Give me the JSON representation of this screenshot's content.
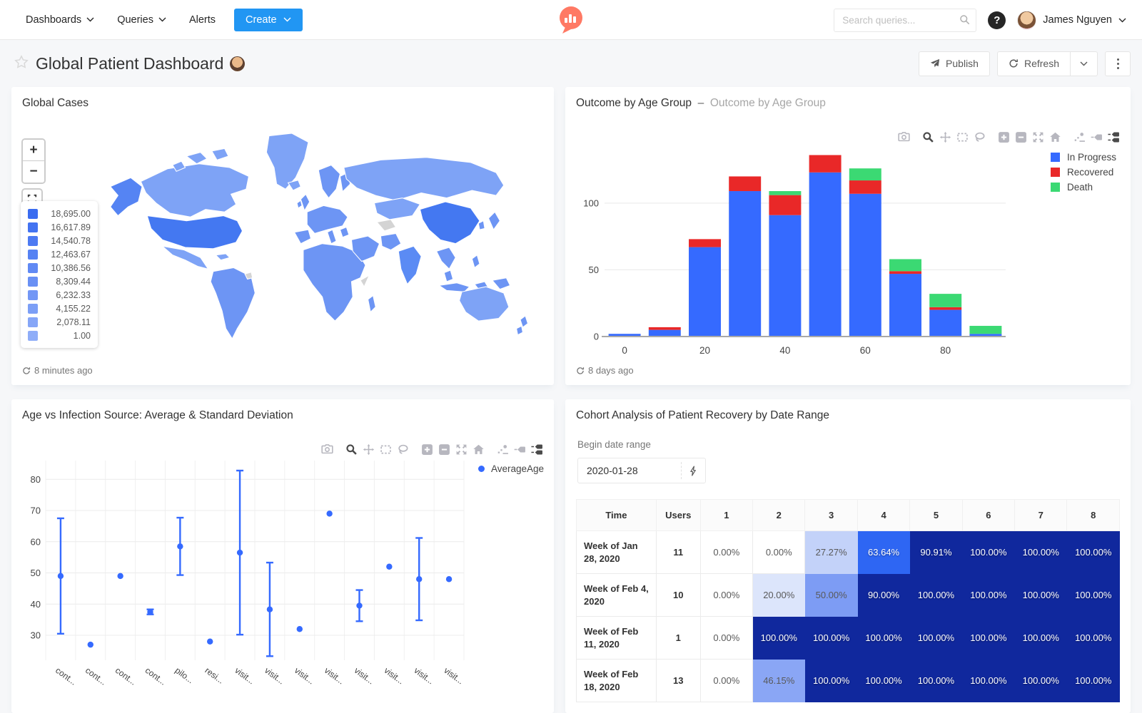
{
  "nav": {
    "menu": [
      {
        "label": "Dashboards"
      },
      {
        "label": "Queries"
      },
      {
        "label": "Alerts"
      }
    ],
    "create_label": "Create",
    "search_placeholder": "Search queries...",
    "user_name": "James Nguyen"
  },
  "header": {
    "title": "Global Patient Dashboard",
    "publish_label": "Publish",
    "refresh_label": "Refresh"
  },
  "panels": {
    "map": {
      "title": "Global Cases",
      "updated": "8 minutes ago",
      "zoom_in": "+",
      "zoom_out": "−",
      "legend_values": [
        "18,695.00",
        "16,617.89",
        "14,540.78",
        "12,463.67",
        "10,386.56",
        "8,309.44",
        "6,232.33",
        "4,155.22",
        "2,078.11",
        "1.00"
      ]
    },
    "bar": {
      "title": "Outcome by Age Group",
      "separator": "–",
      "subtitle": "Outcome by Age Group",
      "updated": "8 days ago"
    },
    "scatter": {
      "title": "Age vs Infection Source: Average & Standard Deviation",
      "legend": "AverageAge"
    },
    "cohort": {
      "title": "Cohort Analysis of Patient Recovery by Date Range",
      "param_label": "Begin date range",
      "param_value": "2020-01-28"
    }
  },
  "modebar": [
    "camera",
    "zoom",
    "pan",
    "box-select",
    "lasso",
    "zoom-in",
    "zoom-out",
    "autoscale",
    "reset-home",
    "spike-lines",
    "hover-closest",
    "hover-compare"
  ],
  "chart_data": [
    {
      "id": "outcome_by_age",
      "type": "bar",
      "stacked": true,
      "categories": [
        0,
        10,
        20,
        30,
        40,
        50,
        60,
        70,
        80,
        90
      ],
      "series": [
        {
          "name": "In Progress",
          "color": "#356AFF",
          "values": [
            2,
            5,
            67,
            109,
            91,
            123,
            107,
            47,
            20,
            2
          ]
        },
        {
          "name": "Recovered",
          "color": "#E92828",
          "values": [
            0,
            2,
            6,
            11,
            15,
            13,
            10,
            2,
            2,
            0
          ]
        },
        {
          "name": "Death",
          "color": "#3BD973",
          "values": [
            0,
            0,
            0,
            0,
            3,
            0,
            9,
            9,
            10,
            6
          ]
        }
      ],
      "xticks": [
        "0",
        "20",
        "40",
        "60",
        "80"
      ],
      "yticks": [
        0,
        50,
        100
      ],
      "ylim": [
        0,
        140
      ],
      "grid": true,
      "legend_position": "right"
    },
    {
      "id": "age_vs_infection_source",
      "type": "scatter",
      "series_name": "AverageAge",
      "color": "#356AFF",
      "categories": [
        "cont...",
        "cont...",
        "cont...",
        "cont...",
        "pilo...",
        "resi...",
        "visit...",
        "visit...",
        "visit...",
        "visit...",
        "visit...",
        "visit...",
        "visit...",
        "visit..."
      ],
      "values": [
        49,
        27,
        49,
        37.5,
        58.5,
        28,
        56.5,
        38.3,
        32,
        69,
        39.5,
        52,
        48,
        48
      ],
      "errors": [
        18.5,
        0,
        0,
        0.8,
        9.2,
        0,
        26.3,
        15,
        0,
        0,
        5,
        0,
        13.2,
        0
      ],
      "yticks": [
        30,
        40,
        50,
        60,
        70,
        80
      ],
      "ylim": [
        22,
        86
      ],
      "grid": true,
      "legend_position": "right"
    },
    {
      "id": "cohort_recovery",
      "type": "table",
      "columns": [
        "Time",
        "Users",
        "1",
        "2",
        "3",
        "4",
        "5",
        "6",
        "7",
        "8"
      ],
      "rows": [
        {
          "time": "Week of Jan 28, 2020",
          "users": "11",
          "values": [
            0,
            0,
            27.27,
            63.64,
            90.91,
            100,
            100,
            100
          ]
        },
        {
          "time": "Week of Feb 4, 2020",
          "users": "10",
          "values": [
            0,
            20,
            50,
            90,
            100,
            100,
            100,
            100
          ]
        },
        {
          "time": "Week of Feb 11, 2020",
          "users": "1",
          "values": [
            0,
            100,
            100,
            100,
            100,
            100,
            100,
            100
          ]
        },
        {
          "time": "Week of Feb 18, 2020",
          "users": "13",
          "values": [
            0,
            46.15,
            100,
            100,
            100,
            100,
            100,
            100
          ]
        }
      ]
    }
  ],
  "colors": {
    "accent": "#2196f3",
    "map_scale_start": "#3a6cf0",
    "map_scale_end": "#8fadf8"
  }
}
